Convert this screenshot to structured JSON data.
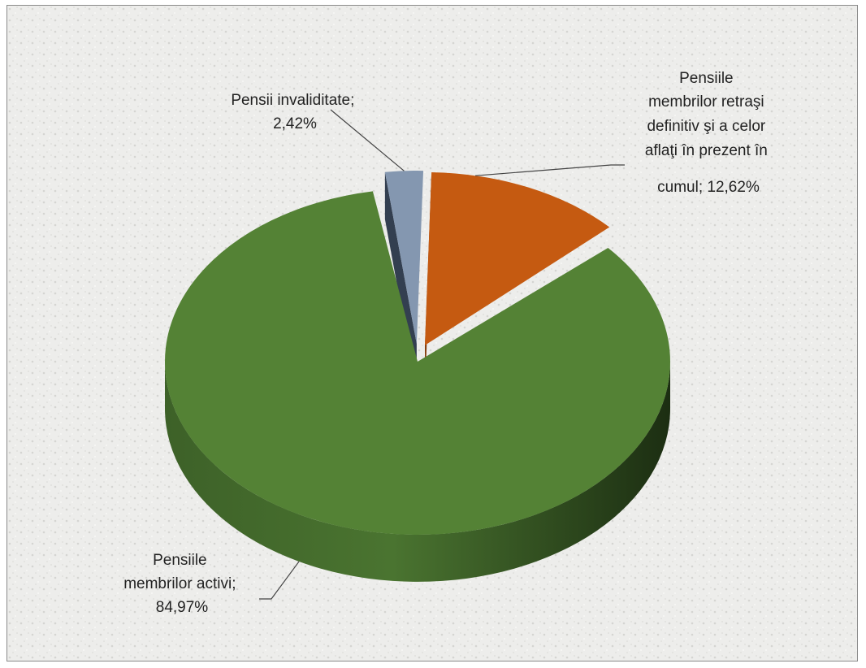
{
  "chart_data": {
    "type": "pie",
    "style": "3d-exploded",
    "title": "",
    "slices": [
      {
        "label_lines": [
          "Pensiile",
          "membrilor activi;",
          "84,97%"
        ],
        "value": 84.97,
        "color": "#548235",
        "side_color": "#2f4a1e"
      },
      {
        "label_lines": [
          "Pensii invaliditate;",
          "2,42%"
        ],
        "value": 2.42,
        "color": "#8497b0",
        "side_color": "#333f50"
      },
      {
        "label_lines": [
          "Pensiile",
          "membrilor retraşi",
          "definitiv şi a celor",
          "aflaţi în prezent în",
          "cumul; 12,62%"
        ],
        "value": 12.62,
        "color": "#c55a11",
        "side_color": "#843c0c"
      }
    ],
    "legend": "none",
    "data_labels": "outside-with-leader-lines"
  }
}
